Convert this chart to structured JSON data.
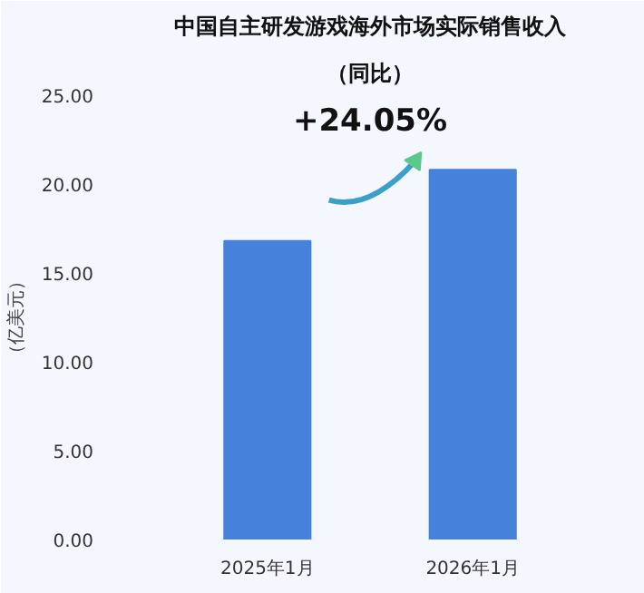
{
  "chart_data": {
    "type": "bar",
    "title": "中国自主研发游戏海外市场实际销售收入",
    "subtitle": "（同比）",
    "ylabel": "（亿美元）",
    "categories": [
      "2025年1月",
      "2026年1月"
    ],
    "values": [
      16.8,
      20.8
    ],
    "color": "#4682dc",
    "ylim": [
      0,
      25
    ],
    "yticks": [
      {
        "value": 0,
        "label": "0.00"
      },
      {
        "value": 5,
        "label": "5.00"
      },
      {
        "value": 10,
        "label": "10.00"
      },
      {
        "value": 15,
        "label": "15.00"
      },
      {
        "value": 20,
        "label": "20.00"
      },
      {
        "value": 25,
        "label": "25.00"
      }
    ],
    "annotations": [
      "+24.05%"
    ],
    "grid": false
  }
}
